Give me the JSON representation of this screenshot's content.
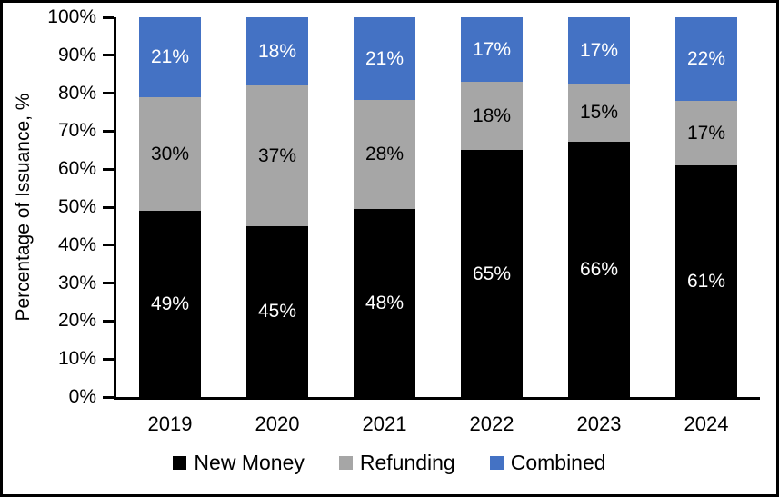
{
  "chart_data": {
    "type": "bar",
    "stacked": true,
    "title": "",
    "xlabel": "",
    "ylabel": "Percentage of Issuance, %",
    "categories": [
      "2019",
      "2020",
      "2021",
      "2022",
      "2023",
      "2024"
    ],
    "series": [
      {
        "name": "New Money",
        "color": "#000000",
        "label_color": "#FFFFFF",
        "values": [
          49,
          45,
          48,
          65,
          66,
          61
        ]
      },
      {
        "name": "Refunding",
        "color": "#A6A6A6",
        "label_color": "#000000",
        "values": [
          30,
          37,
          28,
          18,
          15,
          17
        ]
      },
      {
        "name": "Combined",
        "color": "#4472C4",
        "label_color": "#FFFFFF",
        "values": [
          21,
          18,
          21,
          17,
          17,
          22
        ]
      }
    ],
    "y_ticks": [
      "0%",
      "10%",
      "20%",
      "30%",
      "40%",
      "50%",
      "60%",
      "70%",
      "80%",
      "90%",
      "100%"
    ],
    "ylim": [
      0,
      100
    ],
    "bar_label_suffix": "%",
    "grid": false,
    "legend_position": "bottom",
    "axis_color": "#000000"
  }
}
